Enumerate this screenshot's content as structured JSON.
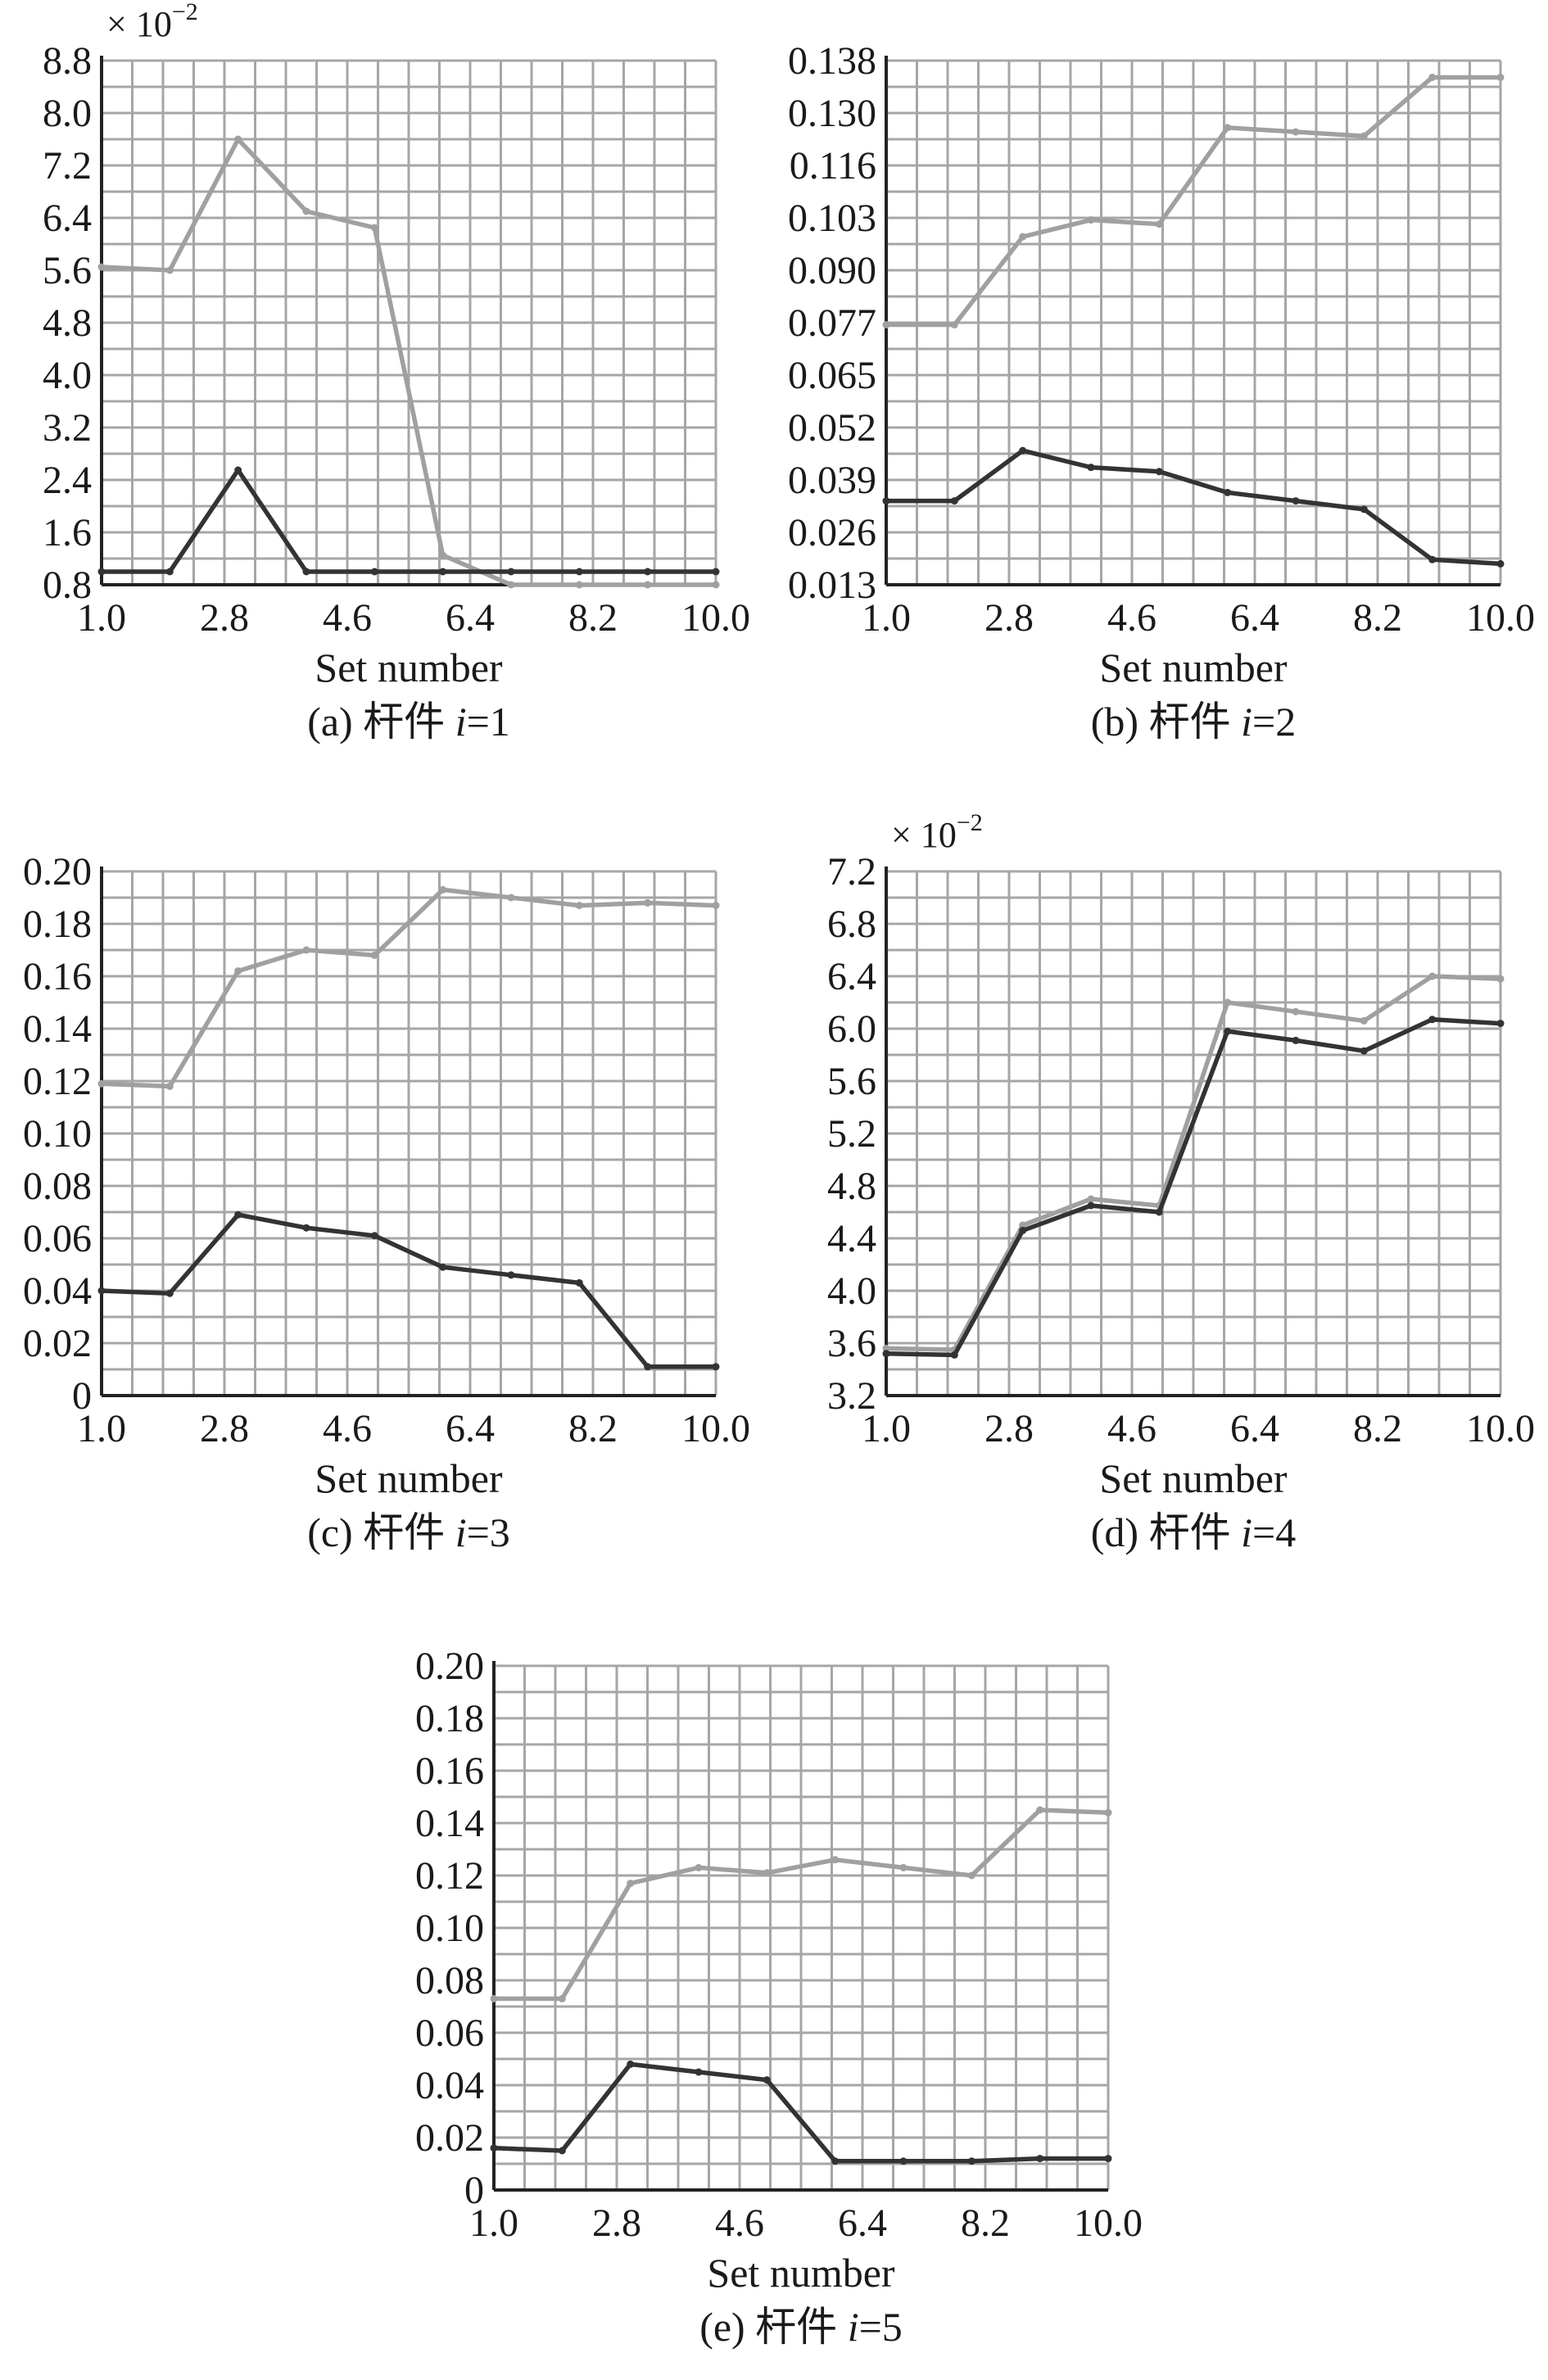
{
  "colors": {
    "series_light": "#a0a0a0",
    "series_dark": "#333333",
    "grid": "#a6a6a6",
    "axis": "#222222"
  },
  "chart_data": [
    {
      "type": "line",
      "caption": "(a) 杆件 i=1",
      "caption_prefix": "(a) 杆件 ",
      "caption_var": "i",
      "caption_suffix": "=1",
      "xlabel": "Set number",
      "multiplier": "× 10",
      "multiplier_exp": "−2",
      "xlim": [
        1.0,
        10.0
      ],
      "ylim": [
        0.8,
        8.8
      ],
      "xticks": [
        "1.0",
        "2.8",
        "4.6",
        "6.4",
        "8.2",
        "10.0"
      ],
      "yticks": [
        "0.8",
        "1.6",
        "2.4",
        "3.2",
        "4.0",
        "4.8",
        "5.6",
        "6.4",
        "7.2",
        "8.0",
        "8.8"
      ],
      "grid": true,
      "x": [
        1,
        2,
        3,
        4,
        5,
        6,
        7,
        8,
        9,
        10
      ],
      "series": [
        {
          "color": "#a0a0a0",
          "values": [
            5.65,
            5.6,
            7.6,
            6.5,
            6.25,
            1.25,
            0.8,
            0.8,
            0.8,
            0.8
          ]
        },
        {
          "color": "#333333",
          "values": [
            1.0,
            1.0,
            2.55,
            1.0,
            1.0,
            1.0,
            1.0,
            1.0,
            1.0,
            1.0
          ]
        }
      ]
    },
    {
      "type": "line",
      "caption": "(b) 杆件 i=2",
      "caption_prefix": "(b) 杆件 ",
      "caption_var": "i",
      "caption_suffix": "=2",
      "xlabel": "Set number",
      "xlim": [
        1.0,
        10.0
      ],
      "ylim": [
        0.013,
        0.138
      ],
      "xticks": [
        "1.0",
        "2.8",
        "4.6",
        "6.4",
        "8.2",
        "10.0"
      ],
      "yticks": [
        "0.013",
        "0.026",
        "0.039",
        "0.052",
        "0.065",
        "0.077",
        "0.090",
        "0.103",
        "0.116",
        "0.130",
        "0.138"
      ],
      "grid": true,
      "x": [
        1,
        2,
        3,
        4,
        5,
        6,
        7,
        8,
        9,
        10
      ],
      "series": [
        {
          "color": "#a0a0a0",
          "values": [
            0.075,
            0.075,
            0.096,
            0.1,
            0.099,
            0.122,
            0.121,
            0.12,
            0.134,
            0.134
          ]
        },
        {
          "color": "#333333",
          "values": [
            0.033,
            0.033,
            0.045,
            0.041,
            0.04,
            0.035,
            0.033,
            0.031,
            0.019,
            0.018
          ]
        }
      ]
    },
    {
      "type": "line",
      "caption": "(c) 杆件 i=3",
      "caption_prefix": "(c) 杆件 ",
      "caption_var": "i",
      "caption_suffix": "=3",
      "xlabel": "Set number",
      "xlim": [
        1.0,
        10.0
      ],
      "ylim": [
        0,
        0.2
      ],
      "xticks": [
        "1.0",
        "2.8",
        "4.6",
        "6.4",
        "8.2",
        "10.0"
      ],
      "yticks": [
        "0",
        "0.02",
        "0.04",
        "0.06",
        "0.08",
        "0.10",
        "0.12",
        "0.14",
        "0.16",
        "0.18",
        "0.20"
      ],
      "grid": true,
      "x": [
        1,
        2,
        3,
        4,
        5,
        6,
        7,
        8,
        9,
        10
      ],
      "series": [
        {
          "color": "#a0a0a0",
          "values": [
            0.119,
            0.118,
            0.162,
            0.17,
            0.168,
            0.193,
            0.19,
            0.187,
            0.188,
            0.187
          ]
        },
        {
          "color": "#333333",
          "values": [
            0.04,
            0.039,
            0.069,
            0.064,
            0.061,
            0.049,
            0.046,
            0.043,
            0.011,
            0.011
          ]
        }
      ]
    },
    {
      "type": "line",
      "caption": "(d) 杆件 i=4",
      "caption_prefix": "(d) 杆件 ",
      "caption_var": "i",
      "caption_suffix": "=4",
      "xlabel": "Set number",
      "multiplier": "× 10",
      "multiplier_exp": "−2",
      "xlim": [
        1.0,
        10.0
      ],
      "ylim": [
        3.2,
        7.2
      ],
      "xticks": [
        "1.0",
        "2.8",
        "4.6",
        "6.4",
        "8.2",
        "10.0"
      ],
      "yticks": [
        "3.2",
        "3.6",
        "4.0",
        "4.4",
        "4.8",
        "5.2",
        "5.6",
        "6.0",
        "6.4",
        "6.8",
        "7.2"
      ],
      "grid": true,
      "x": [
        1,
        2,
        3,
        4,
        5,
        6,
        7,
        8,
        9,
        10
      ],
      "series": [
        {
          "color": "#a0a0a0",
          "values": [
            3.56,
            3.55,
            4.5,
            4.7,
            4.65,
            6.2,
            6.13,
            6.06,
            6.4,
            6.38
          ]
        },
        {
          "color": "#333333",
          "values": [
            3.52,
            3.51,
            4.46,
            4.65,
            4.6,
            5.98,
            5.91,
            5.83,
            6.07,
            6.04
          ]
        }
      ]
    },
    {
      "type": "line",
      "caption": "(e) 杆件 i=5",
      "caption_prefix": "(e) 杆件 ",
      "caption_var": "i",
      "caption_suffix": "=5",
      "xlabel": "Set number",
      "xlim": [
        1.0,
        10.0
      ],
      "ylim": [
        0,
        0.2
      ],
      "xticks": [
        "1.0",
        "2.8",
        "4.6",
        "6.4",
        "8.2",
        "10.0"
      ],
      "yticks": [
        "0",
        "0.02",
        "0.04",
        "0.06",
        "0.08",
        "0.10",
        "0.12",
        "0.14",
        "0.16",
        "0.18",
        "0.20"
      ],
      "grid": true,
      "x": [
        1,
        2,
        3,
        4,
        5,
        6,
        7,
        8,
        9,
        10
      ],
      "series": [
        {
          "color": "#a0a0a0",
          "values": [
            0.073,
            0.073,
            0.117,
            0.123,
            0.121,
            0.126,
            0.123,
            0.12,
            0.145,
            0.144
          ]
        },
        {
          "color": "#333333",
          "values": [
            0.016,
            0.015,
            0.048,
            0.045,
            0.042,
            0.011,
            0.011,
            0.011,
            0.012,
            0.012
          ]
        }
      ]
    }
  ]
}
